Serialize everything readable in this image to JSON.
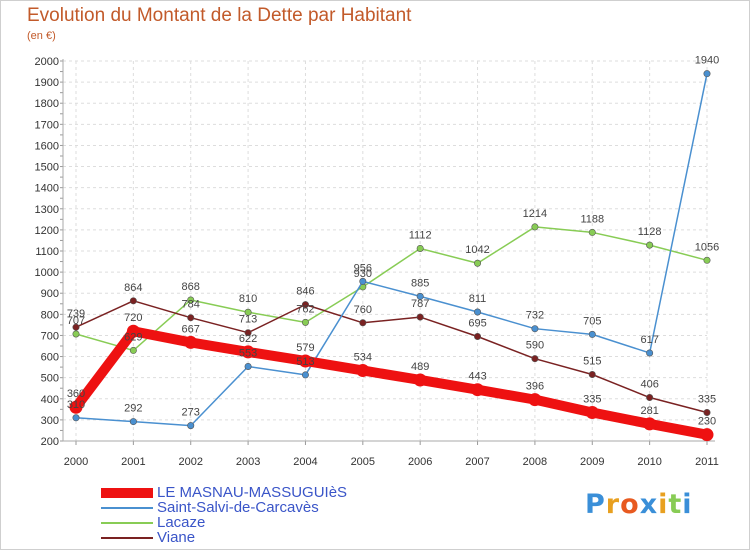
{
  "chart_data": {
    "type": "line",
    "title": "Evolution du Montant de la Dette par Habitant",
    "subtitle": "(en €)",
    "x": [
      "2000",
      "2001",
      "2002",
      "2003",
      "2004",
      "2005",
      "2006",
      "2007",
      "2008",
      "2009",
      "2010",
      "2011"
    ],
    "ylim": [
      200,
      2000
    ],
    "yticks": [
      200,
      300,
      400,
      500,
      600,
      700,
      800,
      900,
      1000,
      1100,
      1200,
      1300,
      1400,
      1500,
      1600,
      1700,
      1800,
      1900,
      2000
    ],
    "grid": true,
    "legend_position": "bottom-left",
    "series": [
      {
        "name": "LE MASNAU-MASSUGUIèS",
        "color": "#ee1111",
        "values": [
          360,
          720,
          667,
          622,
          579,
          534,
          489,
          443,
          396,
          335,
          281,
          230
        ]
      },
      {
        "name": "Saint-Salvi-de-Carcavès",
        "color": "#4a90d0",
        "values": [
          310,
          292,
          273,
          553,
          513,
          956,
          885,
          811,
          732,
          705,
          617,
          1940
        ]
      },
      {
        "name": "Lacaze",
        "color": "#88cc55",
        "values": [
          707,
          629,
          868,
          810,
          762,
          930,
          1112,
          1042,
          1214,
          1188,
          1128,
          1056
        ]
      },
      {
        "name": "Viane",
        "color": "#7a2222",
        "values": [
          739,
          864,
          784,
          713,
          846,
          760,
          787,
          695,
          590,
          515,
          406,
          335
        ]
      }
    ],
    "point_labels": [
      [
        "360",
        "720",
        "667",
        "622",
        "579",
        "534",
        "489",
        "443",
        "396",
        "335",
        "281",
        "230"
      ],
      [
        "310",
        "292",
        "273",
        "553",
        "513",
        "956",
        "885",
        "811",
        "732",
        "705",
        "617",
        "1940"
      ],
      [
        "707",
        "629",
        "868",
        "810",
        "762",
        "930",
        "1112",
        "1042",
        "1214",
        "1188",
        "1128",
        "1056"
      ],
      [
        "739",
        "864",
        "784",
        "713",
        "846",
        "760",
        "787",
        "695",
        "590",
        "515",
        "406",
        "335"
      ]
    ]
  },
  "logo": {
    "letters": [
      "P",
      "r",
      "o",
      "x",
      "i",
      "t",
      "i"
    ],
    "colors": [
      "#3a8fd8",
      "#e8a020",
      "#e85a20",
      "#3a8fd8",
      "#e8a020",
      "#88cc55",
      "#3a8fd8"
    ]
  }
}
